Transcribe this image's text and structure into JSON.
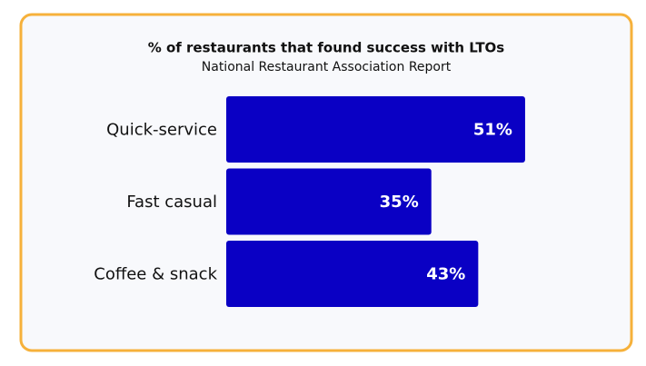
{
  "chart_data": {
    "type": "bar",
    "orientation": "horizontal",
    "title": "% of restaurants that found success with LTOs",
    "subtitle": "National Restaurant Association Report",
    "categories": [
      "Quick-service",
      "Fast casual",
      "Coffee & snack"
    ],
    "values": [
      51,
      35,
      43
    ],
    "value_labels": [
      "51%",
      "35%",
      "43%"
    ],
    "color": "#0a00c4"
  }
}
